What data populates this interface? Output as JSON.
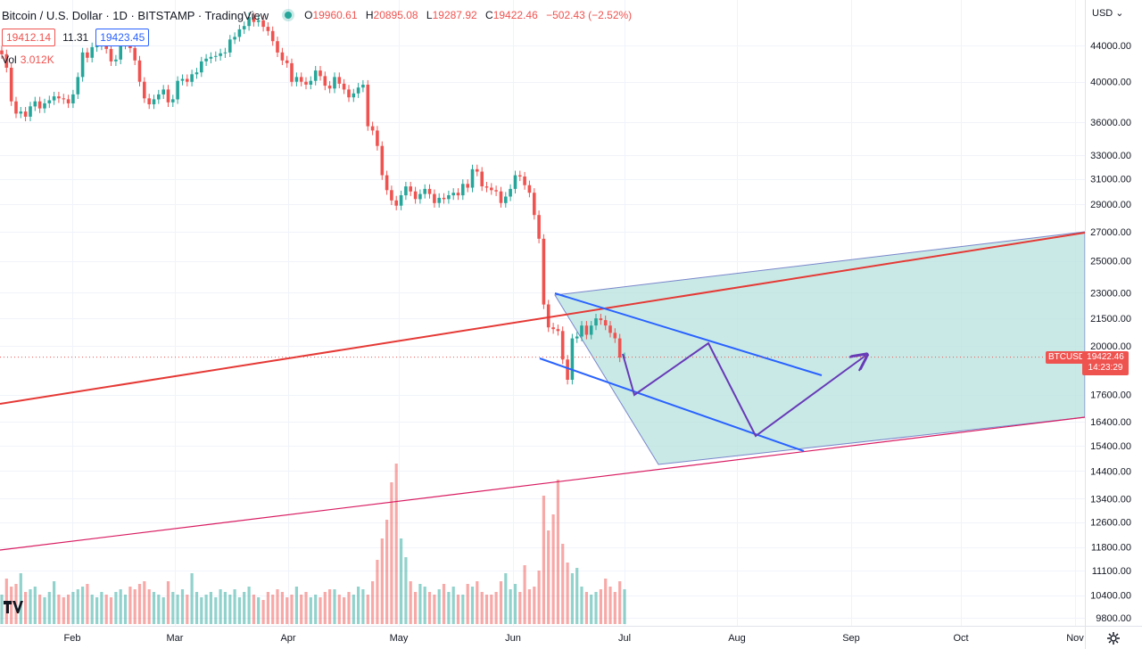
{
  "header": {
    "title": "Bitcoin / U.S. Dollar · 1D · BITSTAMP · TradingView",
    "open_label": "O",
    "open": "19960.61",
    "high_label": "H",
    "high": "20895.08",
    "low_label": "L",
    "low": "19287.92",
    "close_label": "C",
    "close": "19422.46",
    "change": "−502.43 (−2.52%)"
  },
  "trade": {
    "sell": "19412.14",
    "spread": "11.31",
    "buy": "19423.45"
  },
  "volume": {
    "label": "Vol",
    "value": "3.012K"
  },
  "currency_label": "USD ⌄",
  "price_tag": {
    "symbol": "BTCUSD",
    "price": "19422.46",
    "countdown": "14:23:29"
  },
  "colors": {
    "up": "#26a69a",
    "down": "#ef5350",
    "trend_red": "#e53935",
    "channel_blue": "#2962ff",
    "path_purple": "#673ab7",
    "fill": "#b2dfdb"
  },
  "icons": {
    "logo": "tradingview-logo-icon",
    "settings": "gear-icon"
  },
  "chart_data": {
    "type": "candlestick",
    "scale": "log",
    "ylim": [
      9800,
      48000
    ],
    "y_ticks": [
      "44000.00",
      "40000.00",
      "36000.00",
      "33000.00",
      "31000.00",
      "29000.00",
      "27000.00",
      "25000.00",
      "23000.00",
      "21500.00",
      "20000.00",
      "17600.00",
      "16400.00",
      "15400.00",
      "14400.00",
      "13400.00",
      "12600.00",
      "11800.00",
      "11100.00",
      "10400.00",
      "9800.00"
    ],
    "x_ticks": [
      "Feb",
      "Mar",
      "Apr",
      "May",
      "Jun",
      "Jul",
      "Aug",
      "Sep",
      "Oct",
      "Nov"
    ],
    "closes": [
      43000,
      41500,
      38000,
      36800,
      37000,
      36500,
      37500,
      38000,
      37300,
      37800,
      38100,
      38500,
      38300,
      38200,
      37800,
      38700,
      40500,
      43200,
      42600,
      43800,
      44000,
      44400,
      43600,
      42200,
      42400,
      44100,
      44200,
      43700,
      42300,
      40000,
      38300,
      37700,
      38200,
      38700,
      39200,
      37900,
      38200,
      40100,
      40300,
      40000,
      40800,
      41000,
      42200,
      42500,
      42700,
      42800,
      43100,
      43200,
      44700,
      45000,
      45900,
      46300,
      47400,
      46800,
      47000,
      46200,
      45700,
      44500,
      43200,
      42300,
      42000,
      40000,
      40500,
      40000,
      39700,
      40100,
      41200,
      40600,
      39600,
      39300,
      40500,
      39800,
      39200,
      38400,
      38800,
      39400,
      39700,
      35600,
      35200,
      33800,
      31300,
      30100,
      29300,
      28900,
      29700,
      30400,
      30000,
      29400,
      29800,
      30200,
      29800,
      29100,
      29500,
      29400,
      29700,
      29900,
      29700,
      30600,
      30300,
      31800,
      31600,
      30400,
      30300,
      30100,
      30000,
      29100,
      29600,
      30200,
      31300,
      31200,
      30500,
      29900,
      28200,
      26500,
      22300,
      21000,
      20900,
      20800,
      19300,
      18300,
      20400,
      20500,
      21100,
      20600,
      21100,
      21500,
      21400,
      21100,
      20700,
      20400,
      19400,
      19422
    ],
    "volumes": [
      1.1,
      1.7,
      1.4,
      1.5,
      1.9,
      1.2,
      1.3,
      1.4,
      1.1,
      1.0,
      1.2,
      1.6,
      1.1,
      1.0,
      1.1,
      1.2,
      1.3,
      1.4,
      1.5,
      1.1,
      1.0,
      1.2,
      1.1,
      1.0,
      1.2,
      1.3,
      1.1,
      1.4,
      1.3,
      1.5,
      1.6,
      1.3,
      1.2,
      1.1,
      1.0,
      1.6,
      1.2,
      1.1,
      1.3,
      1.1,
      1.9,
      1.2,
      1.0,
      1.1,
      1.2,
      1.0,
      1.3,
      1.2,
      1.1,
      1.3,
      1.0,
      1.2,
      1.4,
      1.1,
      1.0,
      0.9,
      1.2,
      1.1,
      1.3,
      1.2,
      1.0,
      1.1,
      1.4,
      1.1,
      1.2,
      1.0,
      1.1,
      1.0,
      1.2,
      1.3,
      1.3,
      1.1,
      1.0,
      1.2,
      1.1,
      1.4,
      1.3,
      1.1,
      1.6,
      2.4,
      3.2,
      3.9,
      5.3,
      6.0,
      3.2,
      2.5,
      1.6,
      1.2,
      1.5,
      1.4,
      1.2,
      1.1,
      1.3,
      1.5,
      1.2,
      1.4,
      1.1,
      1.1,
      1.5,
      1.4,
      1.6,
      1.2,
      1.1,
      1.1,
      1.2,
      1.6,
      1.9,
      1.3,
      1.5,
      1.2,
      2.2,
      1.3,
      1.4,
      2.0,
      4.8,
      3.5,
      4.1,
      5.4,
      3.0,
      2.3,
      1.9,
      2.1,
      1.4,
      1.2,
      1.1,
      1.2,
      1.3,
      1.7,
      1.4,
      1.2,
      1.6,
      1.3
    ]
  }
}
